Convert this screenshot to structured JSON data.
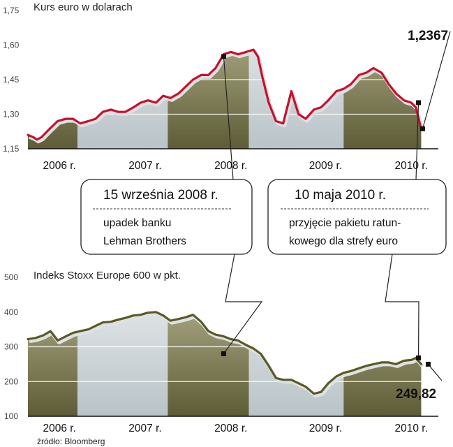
{
  "chart_data": [
    {
      "type": "line",
      "title": "Kurs euro w dolarach",
      "ylim": [
        1.15,
        1.75
      ],
      "yticks": [
        "1,75",
        "1,60",
        "1,45",
        "1,30",
        "1,15"
      ],
      "ytick_values": [
        1.75,
        1.6,
        1.45,
        1.3,
        1.15
      ],
      "year_labels": [
        "2006 r.",
        "2007 r.",
        "2008 r.",
        "2009 r.",
        "2010 r."
      ],
      "xlim": [
        2006.0,
        2010.55
      ],
      "series": [
        {
          "color": "#c8102e",
          "x": [
            2006.0,
            2006.06,
            2006.1,
            2006.15,
            2006.2,
            2006.25,
            2006.33,
            2006.42,
            2006.5,
            2006.58,
            2006.67,
            2006.75,
            2006.83,
            2006.92,
            2007.0,
            2007.08,
            2007.17,
            2007.25,
            2007.33,
            2007.42,
            2007.5,
            2007.58,
            2007.67,
            2007.75,
            2007.83,
            2007.92,
            2008.0,
            2008.08,
            2008.17,
            2008.25,
            2008.33,
            2008.42,
            2008.5,
            2008.55,
            2008.6,
            2008.67,
            2008.75,
            2008.83,
            2008.92,
            2009.0,
            2009.08,
            2009.17,
            2009.25,
            2009.33,
            2009.42,
            2009.5,
            2009.58,
            2009.67,
            2009.75,
            2009.83,
            2009.92,
            2010.0,
            2010.08,
            2010.17,
            2010.25,
            2010.3,
            2010.36
          ],
          "y": [
            1.21,
            1.2,
            1.19,
            1.2,
            1.22,
            1.24,
            1.27,
            1.28,
            1.28,
            1.26,
            1.27,
            1.28,
            1.31,
            1.32,
            1.31,
            1.31,
            1.33,
            1.35,
            1.36,
            1.35,
            1.38,
            1.37,
            1.39,
            1.42,
            1.45,
            1.47,
            1.47,
            1.5,
            1.56,
            1.57,
            1.56,
            1.57,
            1.58,
            1.55,
            1.46,
            1.35,
            1.27,
            1.26,
            1.4,
            1.3,
            1.28,
            1.32,
            1.33,
            1.36,
            1.4,
            1.41,
            1.43,
            1.47,
            1.48,
            1.5,
            1.48,
            1.43,
            1.39,
            1.36,
            1.35,
            1.33,
            1.2367
          ]
        }
      ],
      "last_value": "1,2367",
      "annotations": [
        {
          "x": 2008.17,
          "y": 1.55,
          "label": "15 września 2008 r."
        },
        {
          "x": 2010.33,
          "y": 1.35,
          "label": "10 maja 2010 r."
        }
      ]
    },
    {
      "type": "line",
      "title": "Indeks Stoxx Europe 600 w pkt.",
      "ylim": [
        100,
        500
      ],
      "yticks": [
        "500",
        "400",
        "300",
        "200",
        "100"
      ],
      "ytick_values": [
        500,
        400,
        300,
        200,
        100
      ],
      "year_labels": [
        "2006 r.",
        "2007 r.",
        "2008 r.",
        "2009 r.",
        "2010 r."
      ],
      "xlim": [
        2006.0,
        2010.55
      ],
      "series": [
        {
          "color": "#5b5a26",
          "x": [
            2006.0,
            2006.08,
            2006.17,
            2006.25,
            2006.33,
            2006.42,
            2006.5,
            2006.58,
            2006.67,
            2006.75,
            2006.83,
            2006.92,
            2007.0,
            2007.08,
            2007.17,
            2007.25,
            2007.33,
            2007.42,
            2007.5,
            2007.58,
            2007.67,
            2007.75,
            2007.83,
            2007.92,
            2008.0,
            2008.08,
            2008.17,
            2008.25,
            2008.33,
            2008.42,
            2008.5,
            2008.58,
            2008.67,
            2008.75,
            2008.83,
            2008.92,
            2009.0,
            2009.08,
            2009.17,
            2009.25,
            2009.33,
            2009.42,
            2009.5,
            2009.58,
            2009.67,
            2009.75,
            2009.83,
            2009.92,
            2010.0,
            2010.08,
            2010.17,
            2010.25,
            2010.3,
            2010.36
          ],
          "y": [
            322,
            325,
            333,
            345,
            318,
            330,
            340,
            345,
            350,
            360,
            370,
            372,
            378,
            383,
            390,
            392,
            398,
            400,
            390,
            375,
            380,
            385,
            392,
            372,
            345,
            335,
            330,
            322,
            318,
            305,
            295,
            280,
            245,
            210,
            205,
            205,
            195,
            185,
            165,
            170,
            195,
            215,
            225,
            230,
            238,
            245,
            250,
            255,
            255,
            250,
            260,
            262,
            268,
            249.82
          ]
        }
      ],
      "last_value": "249,82",
      "annotations": [
        {
          "x": 2008.17,
          "y": 280,
          "label": "15 września 2008 r."
        },
        {
          "x": 2010.33,
          "y": 268,
          "label": "10 maja 2010 r."
        }
      ]
    }
  ],
  "callouts": [
    {
      "title": "15 września 2008 r.",
      "line1": "upadek banku",
      "line2": "Lehman Brothers"
    },
    {
      "title": "10 maja 2010 r.",
      "line1": "przyjęcie pakietu ratun-",
      "line2": "kowego dla strefy euro"
    }
  ],
  "source": "źródło: Bloomberg",
  "colors": {
    "euro_line": "#c8102e",
    "stoxx_line": "#5b5a26",
    "band_olive": "#6b6a42",
    "band_light": "#c7d0d4",
    "shadow": "#e1e3e3"
  }
}
